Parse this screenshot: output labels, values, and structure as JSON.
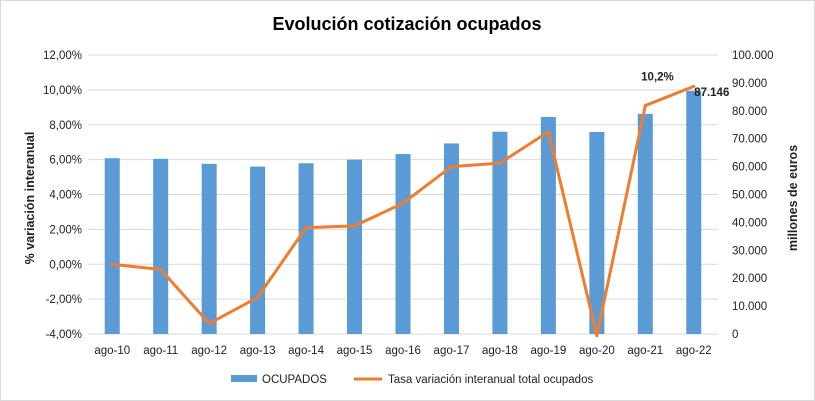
{
  "chart_data": {
    "type": "bar+line",
    "title": "Evolución cotización ocupados",
    "categories": [
      "ago-10",
      "ago-11",
      "ago-12",
      "ago-13",
      "ago-14",
      "ago-15",
      "ago-16",
      "ago-17",
      "ago-18",
      "ago-19",
      "ago-20",
      "ago-21",
      "ago-22"
    ],
    "series": [
      {
        "name": "OCUPADOS",
        "type": "bar",
        "axis": "right",
        "color": "#5b9bd5",
        "values": [
          63000,
          62800,
          61000,
          60000,
          61200,
          62500,
          64500,
          68300,
          72500,
          77800,
          72400,
          78900,
          87146
        ]
      },
      {
        "name": "Tasa variación interanual total ocupados",
        "type": "line",
        "axis": "left",
        "color": "#ed7d31",
        "values": [
          0.0,
          -0.3,
          -3.4,
          -1.9,
          2.1,
          2.2,
          3.5,
          5.6,
          5.8,
          7.6,
          -4.1,
          9.1,
          10.2
        ]
      }
    ],
    "y_left": {
      "label": "% variación interanual",
      "min": -4,
      "max": 12,
      "step": 2,
      "tick_labels": [
        "-4,00%",
        "-2,00%",
        "0,00%",
        "2,00%",
        "4,00%",
        "6,00%",
        "8,00%",
        "10,00%",
        "12,00%"
      ]
    },
    "y_right": {
      "label": "millones de euros",
      "min": 0,
      "max": 100000,
      "step": 10000,
      "tick_labels": [
        "0",
        "10.000",
        "20.000",
        "30.000",
        "40.000",
        "50.000",
        "60.000",
        "70.000",
        "80.000",
        "90.000",
        "100.000"
      ]
    },
    "grid": true,
    "legend_position": "bottom",
    "annotations": {
      "last_line_label": "10,2%",
      "last_bar_label": "87.146"
    }
  }
}
